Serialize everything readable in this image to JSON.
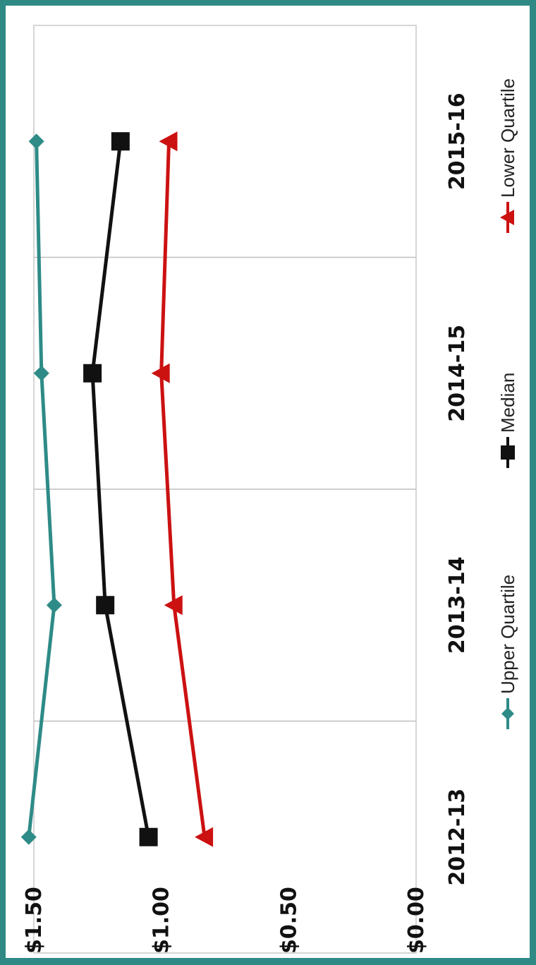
{
  "chart_data": {
    "type": "line",
    "title": "",
    "xlabel": "",
    "ylabel": "",
    "categories": [
      "2012-13",
      "2013-14",
      "2014-15",
      "2015-16"
    ],
    "y_ticks": [
      "$0.00",
      "$0.50",
      "$1.00",
      "$1.50"
    ],
    "ylim": [
      0,
      1.5
    ],
    "grid": "vertical lines at category boundaries",
    "legend_position": "bottom",
    "orientation": "rotated 90 degrees clockwise",
    "series": [
      {
        "name": "Upper Quartile",
        "values": [
          1.52,
          1.42,
          1.47,
          1.49
        ],
        "color": "#2e8b87",
        "marker": "diamond"
      },
      {
        "name": "Median",
        "values": [
          1.05,
          1.22,
          1.27,
          1.16
        ],
        "color": "#111111",
        "marker": "square"
      },
      {
        "name": "Lower Quartile",
        "values": [
          0.83,
          0.95,
          1.0,
          0.97
        ],
        "color": "#cc1111",
        "marker": "triangle"
      }
    ]
  }
}
